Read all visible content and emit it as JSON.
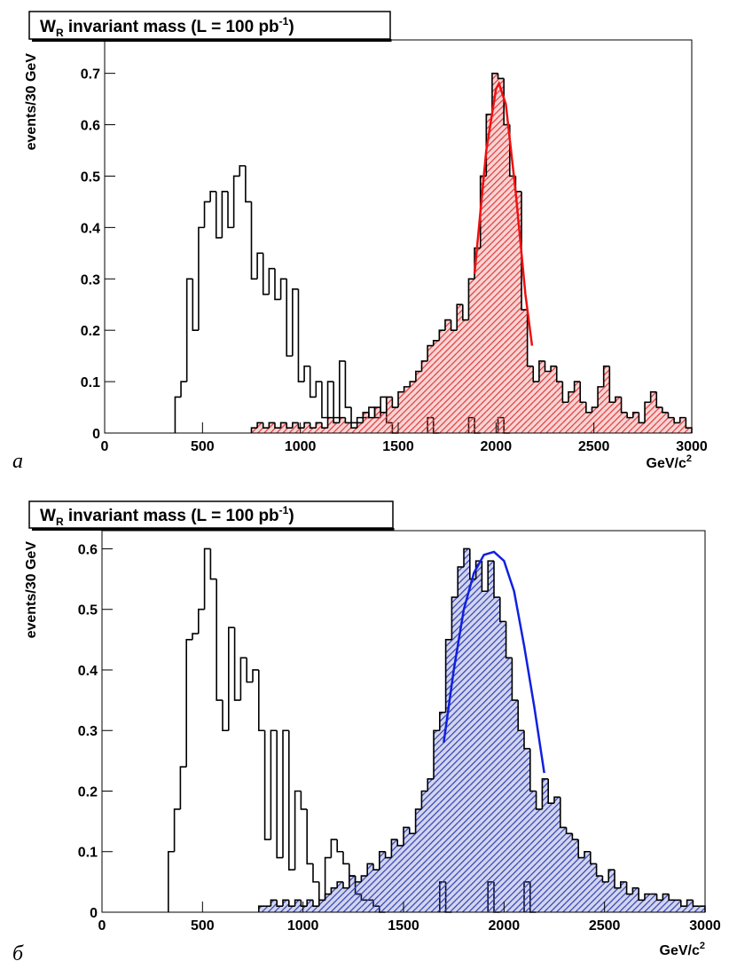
{
  "chart_data": [
    {
      "type": "histogram",
      "title": [
        "W",
        "R",
        " invariant mass (L = 100 pb",
        "-1",
        ")"
      ],
      "panel_label": "а",
      "xlabel": [
        "GeV/c",
        "2"
      ],
      "ylabel": "events/30 GeV",
      "xlim": [
        0,
        3000
      ],
      "ylim": [
        0,
        0.765
      ],
      "xticks": [
        0,
        500,
        1000,
        1500,
        2000,
        2500,
        3000
      ],
      "yticks": [
        0,
        0.1,
        0.2,
        0.3,
        0.4,
        0.5,
        0.6,
        0.7
      ],
      "bins": [
        0,
        30,
        60,
        90,
        120,
        150,
        180,
        210,
        240,
        270,
        300,
        330,
        360,
        390,
        420,
        450,
        480,
        510,
        540,
        570,
        600,
        630,
        660,
        690,
        720,
        750,
        780,
        810,
        840,
        870,
        900,
        930,
        960,
        990,
        1020,
        1050,
        1080,
        1110,
        1140,
        1170,
        1200,
        1230,
        1260,
        1290,
        1320,
        1350,
        1380,
        1410,
        1440,
        1470,
        1500,
        1530,
        1560,
        1590,
        1620,
        1650,
        1680,
        1710,
        1740,
        1770,
        1800,
        1830,
        1860,
        1890,
        1920,
        1950,
        1980,
        2010,
        2040,
        2070,
        2100,
        2130,
        2160,
        2190,
        2220,
        2250,
        2280,
        2310,
        2340,
        2370,
        2400,
        2430,
        2460,
        2490,
        2520,
        2550,
        2580,
        2610,
        2640,
        2670,
        2700,
        2730,
        2760,
        2790,
        2820,
        2850,
        2880,
        2910,
        2940,
        2970,
        3000
      ],
      "series": [
        {
          "color": "#000000",
          "filled": false,
          "values": [
            0,
            0,
            0,
            0,
            0,
            0,
            0,
            0,
            0,
            0,
            0,
            0,
            0.07,
            0.1,
            0.3,
            0.2,
            0.4,
            0.45,
            0.47,
            0.38,
            0.47,
            0.4,
            0.5,
            0.52,
            0.45,
            0.3,
            0.35,
            0.27,
            0.32,
            0.26,
            0.3,
            0.15,
            0.28,
            0.1,
            0.13,
            0.07,
            0.1,
            0.03,
            0.1,
            0.03,
            0.14,
            0.05,
            0.02,
            0.03,
            0.03,
            0.05,
            0.03,
            0.07,
            0.02,
            0,
            0,
            0,
            0,
            0,
            0,
            0.03,
            0,
            0,
            0,
            0,
            0,
            0,
            0.03,
            0,
            0,
            0,
            0,
            0.03,
            0,
            0,
            0,
            0,
            0,
            0,
            0,
            0,
            0,
            0,
            0,
            0,
            0,
            0,
            0,
            0,
            0,
            0,
            0,
            0,
            0,
            0,
            0,
            0,
            0,
            0,
            0,
            0,
            0,
            0,
            0,
            0
          ]
        },
        {
          "color": "#e03a3a",
          "filled": true,
          "values": [
            0,
            0,
            0,
            0,
            0,
            0,
            0,
            0,
            0,
            0,
            0,
            0,
            0,
            0,
            0,
            0,
            0,
            0,
            0,
            0,
            0,
            0,
            0,
            0,
            0,
            0.01,
            0.02,
            0.01,
            0.02,
            0.01,
            0.02,
            0.01,
            0.02,
            0.01,
            0.02,
            0.01,
            0.02,
            0.01,
            0.03,
            0.02,
            0.03,
            0.02,
            0.01,
            0.02,
            0.04,
            0.03,
            0.05,
            0.04,
            0.07,
            0.05,
            0.08,
            0.09,
            0.1,
            0.12,
            0.14,
            0.17,
            0.18,
            0.2,
            0.22,
            0.2,
            0.25,
            0.22,
            0.3,
            0.36,
            0.5,
            0.62,
            0.7,
            0.69,
            0.6,
            0.5,
            0.47,
            0.24,
            0.13,
            0.1,
            0.14,
            0.12,
            0.13,
            0.1,
            0.06,
            0.08,
            0.1,
            0.06,
            0.04,
            0.05,
            0.09,
            0.13,
            0.06,
            0.07,
            0.04,
            0.03,
            0.04,
            0.02,
            0.06,
            0.08,
            0.05,
            0.04,
            0.03,
            0.02,
            0.03,
            0.01
          ]
        }
      ],
      "fit": {
        "color": "#ee1111",
        "x": [
          1890,
          1950,
          2000,
          2015,
          2050,
          2100,
          2150,
          2184
        ],
        "values": [
          0.31,
          0.55,
          0.67,
          0.68,
          0.64,
          0.47,
          0.27,
          0.17
        ]
      }
    },
    {
      "type": "histogram",
      "title": [
        "W",
        "R",
        " invariant mass (L = 100 pb",
        "-1",
        ")"
      ],
      "panel_label": "б",
      "xlabel": [
        "GeV/c",
        "2"
      ],
      "ylabel": "events/30 GeV",
      "xlim": [
        0,
        3000
      ],
      "ylim": [
        0,
        0.63
      ],
      "xticks": [
        0,
        500,
        1000,
        1500,
        2000,
        2500,
        3000
      ],
      "yticks": [
        0,
        0.1,
        0.2,
        0.3,
        0.4,
        0.5,
        0.6
      ],
      "bins": [
        0,
        30,
        60,
        90,
        120,
        150,
        180,
        210,
        240,
        270,
        300,
        330,
        360,
        390,
        420,
        450,
        480,
        510,
        540,
        570,
        600,
        630,
        660,
        690,
        720,
        750,
        780,
        810,
        840,
        870,
        900,
        930,
        960,
        990,
        1020,
        1050,
        1080,
        1110,
        1140,
        1170,
        1200,
        1230,
        1260,
        1290,
        1320,
        1350,
        1380,
        1410,
        1440,
        1470,
        1500,
        1530,
        1560,
        1590,
        1620,
        1650,
        1680,
        1710,
        1740,
        1770,
        1800,
        1830,
        1860,
        1890,
        1920,
        1950,
        1980,
        2010,
        2040,
        2070,
        2100,
        2130,
        2160,
        2190,
        2220,
        2250,
        2280,
        2310,
        2340,
        2370,
        2400,
        2430,
        2460,
        2490,
        2520,
        2550,
        2580,
        2610,
        2640,
        2670,
        2700,
        2730,
        2760,
        2790,
        2820,
        2850,
        2880,
        2910,
        2940,
        2970,
        3000
      ],
      "series": [
        {
          "color": "#000000",
          "filled": false,
          "values": [
            0,
            0,
            0,
            0,
            0,
            0,
            0,
            0,
            0,
            0,
            0,
            0.1,
            0.17,
            0.24,
            0.45,
            0.46,
            0.5,
            0.6,
            0.55,
            0.35,
            0.3,
            0.47,
            0.35,
            0.42,
            0.38,
            0.4,
            0.3,
            0.12,
            0.3,
            0.09,
            0.3,
            0.07,
            0.2,
            0.17,
            0.08,
            0.05,
            0.02,
            0.09,
            0.12,
            0.1,
            0.08,
            0.06,
            0.03,
            0.02,
            0.02,
            0.01,
            0,
            0,
            0,
            0,
            0,
            0,
            0,
            0,
            0,
            0,
            0.05,
            0,
            0,
            0,
            0,
            0,
            0,
            0,
            0.05,
            0,
            0,
            0,
            0,
            0,
            0.05,
            0,
            0,
            0,
            0,
            0,
            0,
            0,
            0,
            0,
            0,
            0,
            0,
            0,
            0,
            0,
            0,
            0,
            0,
            0,
            0,
            0,
            0,
            0,
            0,
            0,
            0,
            0,
            0,
            0
          ]
        },
        {
          "color": "#3040b0",
          "filled": true,
          "values": [
            0,
            0,
            0,
            0,
            0,
            0,
            0,
            0,
            0,
            0,
            0,
            0,
            0,
            0,
            0,
            0,
            0,
            0,
            0,
            0,
            0,
            0,
            0,
            0,
            0,
            0,
            0.01,
            0.01,
            0.02,
            0.01,
            0.02,
            0.01,
            0.02,
            0.01,
            0.02,
            0.01,
            0.02,
            0.03,
            0.04,
            0.05,
            0.04,
            0.06,
            0.05,
            0.06,
            0.08,
            0.07,
            0.1,
            0.09,
            0.12,
            0.11,
            0.14,
            0.13,
            0.17,
            0.2,
            0.22,
            0.3,
            0.33,
            0.45,
            0.52,
            0.57,
            0.6,
            0.55,
            0.58,
            0.53,
            0.58,
            0.52,
            0.48,
            0.42,
            0.35,
            0.3,
            0.27,
            0.2,
            0.17,
            0.22,
            0.18,
            0.19,
            0.14,
            0.13,
            0.12,
            0.09,
            0.1,
            0.08,
            0.06,
            0.05,
            0.07,
            0.04,
            0.05,
            0.03,
            0.04,
            0.02,
            0.03,
            0.03,
            0.02,
            0.03,
            0.02,
            0.02,
            0.01,
            0.02,
            0.01,
            0.01
          ]
        }
      ],
      "fit": {
        "color": "#1020e0",
        "x": [
          1700,
          1750,
          1800,
          1850,
          1900,
          1950,
          2000,
          2050,
          2100,
          2150,
          2200
        ],
        "values": [
          0.28,
          0.4,
          0.5,
          0.56,
          0.59,
          0.595,
          0.58,
          0.53,
          0.44,
          0.34,
          0.23
        ]
      }
    }
  ]
}
